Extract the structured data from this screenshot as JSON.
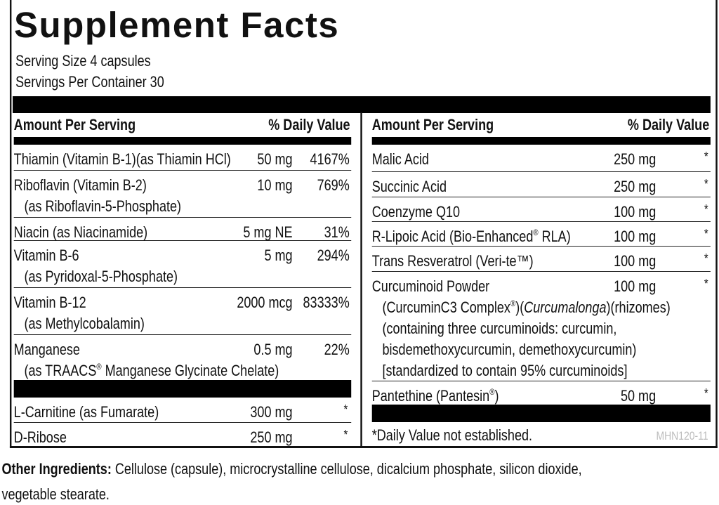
{
  "title": "Supplement Facts",
  "serving_size": "Serving Size 4 capsules",
  "servings_per_container": "Servings Per Container 30",
  "header": {
    "amount": "Amount Per Serving",
    "dv": "% Daily Value"
  },
  "left_rows": [
    {
      "name": "Thiamin (Vitamin B-1)(as Thiamin HCl)",
      "amount": "50 mg",
      "dv": "4167%"
    },
    {
      "name": "Riboflavin (Vitamin B-2)",
      "sub": "(as Riboflavin-5-Phosphate)",
      "amount": "10 mg",
      "dv": "769%"
    },
    {
      "name": "Niacin (as Niacinamide)",
      "amount": "5 mg NE",
      "dv": "31%"
    },
    {
      "name": "Vitamin B-6",
      "sub": "(as Pyridoxal-5-Phosphate)",
      "amount": "5 mg",
      "dv": "294%"
    },
    {
      "name": "Vitamin B-12",
      "sub": "(as Methylcobalamin)",
      "amount": "2000 mcg",
      "dv": "83333%"
    },
    {
      "name": "Manganese",
      "sub_a": "(as TRAACS",
      "sub_b": " Manganese Glycinate Chelate)",
      "amount": "0.5 mg",
      "dv": "22%"
    },
    {
      "name": "L-Carnitine (as Fumarate)",
      "amount": "300 mg",
      "dv": "*"
    },
    {
      "name": "D-Ribose",
      "amount": "250 mg",
      "dv": "*"
    }
  ],
  "right_rows": [
    {
      "name": "Malic Acid",
      "amount": "250 mg",
      "dv": "*"
    },
    {
      "name": "Succinic Acid",
      "amount": "250 mg",
      "dv": "*"
    },
    {
      "name": "Coenzyme Q10",
      "amount": "100 mg",
      "dv": "*"
    },
    {
      "name_a": "R-Lipoic Acid (Bio-Enhanced",
      "name_b": " RLA)",
      "amount": "100 mg",
      "dv": "*"
    },
    {
      "name": "Trans Resveratrol (Veri-te™)",
      "amount": "100 mg",
      "dv": "*"
    },
    {
      "name": "Curcuminoid Powder",
      "amount": "100 mg",
      "dv": "*",
      "line1_a": "(CurcuminC3 Complex",
      "line1_b": ")(",
      "line1_italic": "Curcumalonga",
      "line1_c": ")(rhizomes)",
      "line2": "(containing three curcuminoids: curcumin,",
      "line3": "bisdemethoxycurcumin, demethoxycurcumin)",
      "line4": "[standardized to contain 95% curcuminoids]"
    },
    {
      "name_a": "Pantethine (Pantesin",
      "name_b": ")",
      "amount": "50 mg",
      "dv": "*"
    }
  ],
  "registered": "®",
  "footnote": "*Daily Value not established.",
  "code": "MHN120-11",
  "other_ingredients": {
    "label": "Other Ingredients:",
    "text1": " Cellulose (capsule), microcrystalline cellulose, dicalcium phosphate, silicon dioxide,",
    "text2": "vegetable stearate."
  }
}
